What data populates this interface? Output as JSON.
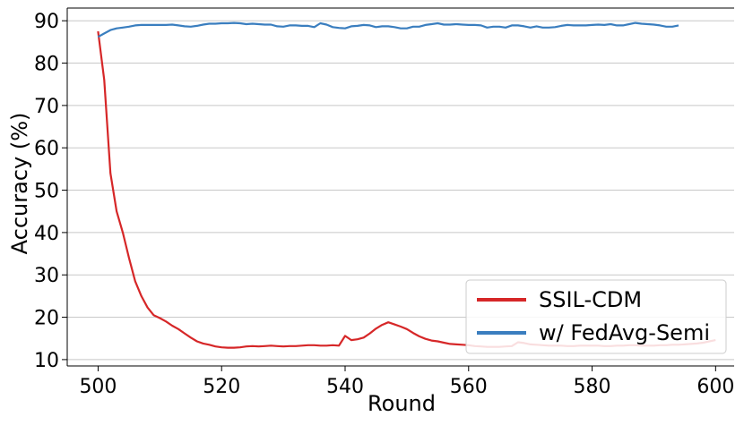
{
  "chart_data": {
    "type": "line",
    "xlabel": "Round",
    "ylabel": "Accuracy (%)",
    "xlim": [
      495,
      603
    ],
    "ylim": [
      8.5,
      93
    ],
    "xticks": [
      500,
      520,
      540,
      560,
      580,
      600
    ],
    "yticks": [
      10,
      20,
      30,
      40,
      50,
      60,
      70,
      80,
      90
    ],
    "grid": "horizontal",
    "legend_position": "lower-right",
    "series": [
      {
        "name": "SSIL-CDM",
        "color": "#d62728",
        "x": [
          500,
          501,
          502,
          503,
          504,
          505,
          506,
          507,
          508,
          509,
          510,
          511,
          512,
          513,
          514,
          515,
          516,
          517,
          518,
          519,
          520,
          521,
          522,
          523,
          524,
          525,
          526,
          527,
          528,
          529,
          530,
          531,
          532,
          533,
          534,
          535,
          536,
          537,
          538,
          539,
          540,
          541,
          542,
          543,
          544,
          545,
          546,
          547,
          548,
          549,
          550,
          551,
          552,
          553,
          554,
          555,
          556,
          557,
          558,
          559,
          560,
          561,
          562,
          563,
          564,
          565,
          566,
          567,
          568,
          569,
          570,
          571,
          572,
          573,
          574,
          575,
          576,
          577,
          578,
          579,
          580,
          581,
          582,
          583,
          584,
          585,
          586,
          587,
          588,
          589,
          590,
          591,
          592,
          593,
          594,
          595,
          596,
          597,
          598,
          599,
          600
        ],
        "values": [
          87.5,
          76,
          54,
          45,
          40,
          34,
          28.5,
          25,
          22.3,
          20.5,
          19.8,
          19,
          18,
          17.2,
          16.2,
          15.2,
          14.3,
          13.8,
          13.5,
          13.1,
          12.9,
          12.8,
          12.8,
          12.9,
          13.1,
          13.2,
          13.1,
          13.2,
          13.3,
          13.2,
          13.1,
          13.2,
          13.2,
          13.3,
          13.4,
          13.4,
          13.3,
          13.3,
          13.4,
          13.3,
          15.6,
          14.6,
          14.8,
          15.2,
          16.2,
          17.3,
          18.2,
          18.8,
          18.3,
          17.8,
          17.2,
          16.3,
          15.5,
          14.9,
          14.5,
          14.3,
          14.0,
          13.7,
          13.6,
          13.5,
          13.4,
          13.2,
          13.1,
          13.0,
          13.0,
          13.0,
          13.1,
          13.2,
          14.1,
          13.9,
          13.6,
          13.5,
          13.4,
          13.3,
          13.3,
          13.3,
          13.2,
          13.2,
          13.3,
          13.3,
          13.3,
          13.3,
          13.2,
          13.2,
          13.3,
          13.3,
          13.4,
          13.4,
          13.3,
          13.3,
          13.3,
          13.4,
          13.4,
          13.5,
          13.5,
          13.6,
          13.7,
          13.8,
          14.0,
          14.3,
          14.6
        ]
      },
      {
        "name": "w/ FedAvg-Semi",
        "color": "#3a7ebf",
        "x": [
          500,
          501,
          502,
          503,
          504,
          505,
          506,
          507,
          508,
          509,
          510,
          511,
          512,
          513,
          514,
          515,
          516,
          517,
          518,
          519,
          520,
          521,
          522,
          523,
          524,
          525,
          526,
          527,
          528,
          529,
          530,
          531,
          532,
          533,
          534,
          535,
          536,
          537,
          538,
          539,
          540,
          541,
          542,
          543,
          544,
          545,
          546,
          547,
          548,
          549,
          550,
          551,
          552,
          553,
          554,
          555,
          556,
          557,
          558,
          559,
          560,
          561,
          562,
          563,
          564,
          565,
          566,
          567,
          568,
          569,
          570,
          571,
          572,
          573,
          574,
          575,
          576,
          577,
          578,
          579,
          580,
          581,
          582,
          583,
          584,
          585,
          586,
          587,
          588,
          589,
          590,
          591,
          592,
          593,
          594
        ],
        "values": [
          86.2,
          87.0,
          87.8,
          88.2,
          88.4,
          88.6,
          88.9,
          89.0,
          89.0,
          89.0,
          89.0,
          89.0,
          89.1,
          88.9,
          88.7,
          88.6,
          88.8,
          89.1,
          89.3,
          89.3,
          89.4,
          89.4,
          89.5,
          89.4,
          89.2,
          89.3,
          89.2,
          89.1,
          89.1,
          88.7,
          88.6,
          88.9,
          88.9,
          88.8,
          88.8,
          88.5,
          89.4,
          89.1,
          88.5,
          88.3,
          88.2,
          88.7,
          88.8,
          89.0,
          88.9,
          88.5,
          88.7,
          88.7,
          88.5,
          88.2,
          88.2,
          88.6,
          88.6,
          89.0,
          89.2,
          89.4,
          89.1,
          89.1,
          89.2,
          89.1,
          89.0,
          89.0,
          88.9,
          88.4,
          88.6,
          88.6,
          88.4,
          88.9,
          88.9,
          88.7,
          88.4,
          88.7,
          88.4,
          88.4,
          88.5,
          88.8,
          89.0,
          88.9,
          88.9,
          88.9,
          89.0,
          89.1,
          89.0,
          89.2,
          88.9,
          88.9,
          89.2,
          89.5,
          89.3,
          89.2,
          89.1,
          88.9,
          88.6,
          88.6,
          88.9
        ]
      }
    ]
  }
}
